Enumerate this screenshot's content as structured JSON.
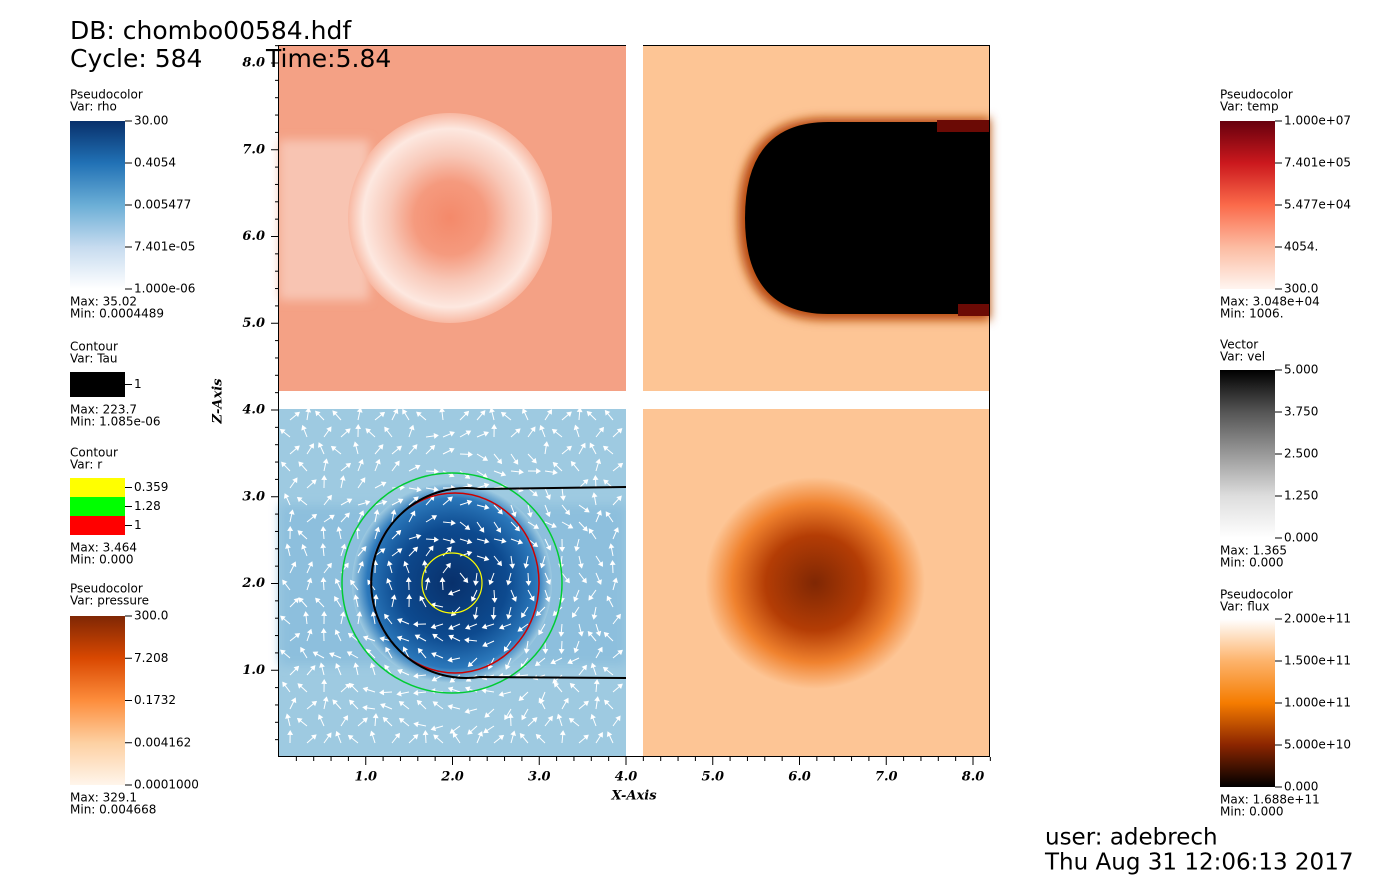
{
  "header": {
    "db": "DB: chombo00584.hdf",
    "cycle": "Cycle: 584",
    "time": "Time:5.84"
  },
  "left_legends": [
    {
      "plot": "Pseudocolor",
      "var": "Var: rho",
      "labels": [
        "30.00",
        "0.4054",
        "0.005477",
        "7.401e-05",
        "1.000e-06"
      ],
      "colors": [
        "#08306b",
        "#2171b5",
        "#6baed6",
        "#c6dbef",
        "#ffffff"
      ],
      "max": "Max:  35.02",
      "min": "Min:  0.0004489"
    },
    {
      "plot": "Contour",
      "var": "Var: Tau",
      "labels": [
        "1"
      ],
      "colors": [
        "#000000"
      ],
      "max": "Max:  223.7",
      "min": "Min:  1.085e-06"
    },
    {
      "plot": "Contour",
      "var": "Var: r",
      "labels": [
        "0.359",
        "1.28",
        "1"
      ],
      "colors": [
        "#ffff00",
        "#00ff00",
        "#ff0000"
      ],
      "max": "Max:  3.464",
      "min": "Min:  0.000"
    },
    {
      "plot": "Pseudocolor",
      "var": "Var: pressure",
      "labels": [
        "300.0",
        "7.208",
        "0.1732",
        "0.004162",
        "0.0001000"
      ],
      "colors": [
        "#7f2704",
        "#d94801",
        "#fd8d3c",
        "#fdd0a2",
        "#fff5eb"
      ],
      "max": "Max:  329.1",
      "min": "Min:  0.004668"
    }
  ],
  "right_legends": [
    {
      "plot": "Pseudocolor",
      "var": "Var: temp",
      "labels": [
        "1.000e+07",
        "7.401e+05",
        "5.477e+04",
        "4054.",
        "300.0"
      ],
      "colors": [
        "#67000d",
        "#cb181d",
        "#fb6a4a",
        "#fcbba1",
        "#fff5f0"
      ],
      "max": "Max:  3.048e+04",
      "min": "Min:  1006."
    },
    {
      "plot": "Vector",
      "var": "Var: vel",
      "labels": [
        "5.000",
        "3.750",
        "2.500",
        "1.250",
        "0.000"
      ],
      "colors": [
        "#000000",
        "#555555",
        "#999999",
        "#dddddd",
        "#ffffff"
      ],
      "max": "Max:  1.365",
      "min": "Min:  0.000"
    },
    {
      "plot": "Pseudocolor",
      "var": "Var: flux",
      "labels": [
        "2.000e+11",
        "1.500e+11",
        "1.000e+11",
        "5.000e+10",
        "0.000"
      ],
      "colors": [
        "#ffffff",
        "#fdb36b",
        "#f57c00",
        "#8b2500",
        "#000000"
      ],
      "max": "Max:  1.688e+11",
      "min": "Min:  0.000"
    }
  ],
  "axes": {
    "x_label": "X-Axis",
    "y_label": "Z-Axis",
    "x_ticks": [
      "1.0",
      "2.0",
      "3.0",
      "4.0",
      "5.0",
      "6.0",
      "7.0",
      "8.0"
    ],
    "y_ticks": [
      "1.0",
      "2.0",
      "3.0",
      "4.0",
      "5.0",
      "6.0",
      "7.0",
      "8.0"
    ]
  },
  "footer": {
    "user": "user: adebrech",
    "date": "Thu Aug 31 12:06:13 2017"
  }
}
